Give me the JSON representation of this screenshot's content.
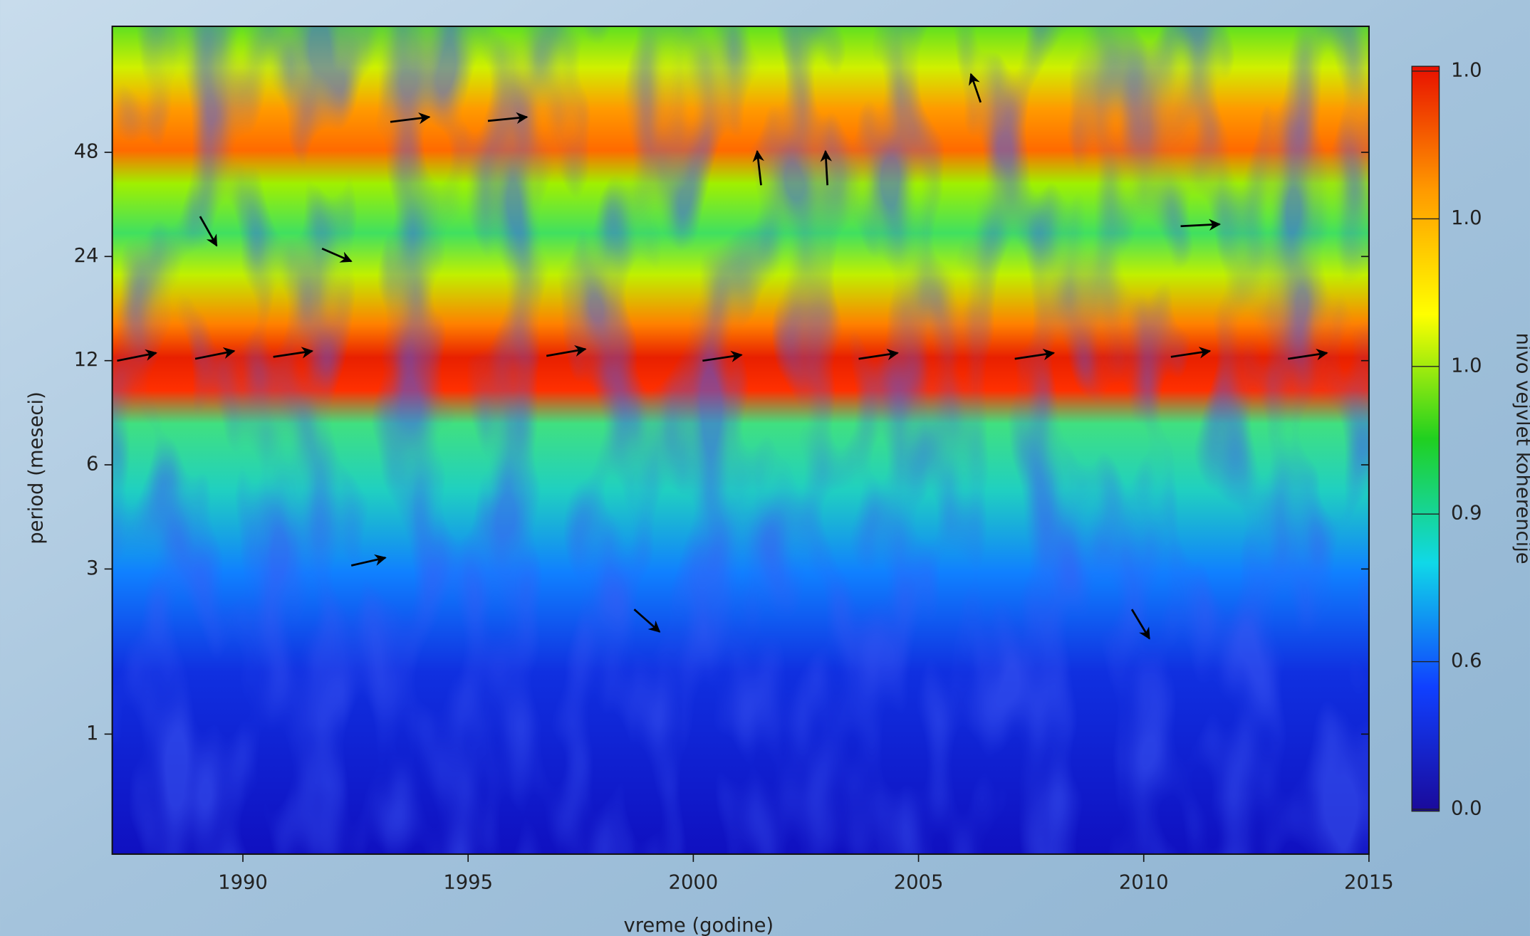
{
  "chart_data": {
    "type": "heatmap",
    "xlabel": "vreme (godine)",
    "ylabel": "period (meseci)",
    "xlim": [
      1987.1,
      2015
    ],
    "xticks": [
      1990,
      1995,
      2000,
      2005,
      2010,
      2015
    ],
    "ylim": [
      0.45,
      111
    ],
    "yticks": [
      1,
      3,
      6,
      12,
      24,
      48
    ],
    "log_y": true,
    "colorbar": {
      "label": "nivo vejvlet koherencije",
      "labels": [
        "0.0",
        "0.6",
        "0.9",
        "1.0",
        "1.0",
        "1.0"
      ],
      "colors": [
        "#1a0a9a",
        "#1040ff",
        "#10d8e8",
        "#20d020",
        "#ffff00",
        "#ff9a00",
        "#e81000"
      ]
    }
  }
}
